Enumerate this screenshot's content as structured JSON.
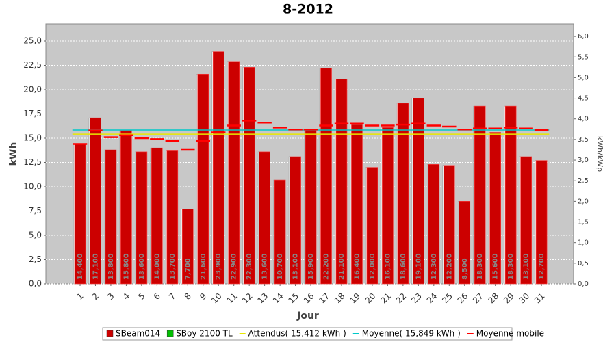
{
  "chart_data": {
    "type": "bar",
    "title": "8-2012",
    "xlabel": "Jour",
    "ylabel": "kWh",
    "y2label": "kWh/kWp",
    "categories": [
      "1",
      "2",
      "3",
      "4",
      "5",
      "6",
      "7",
      "8",
      "9",
      "10",
      "11",
      "12",
      "13",
      "14",
      "15",
      "16",
      "17",
      "18",
      "19",
      "20",
      "21",
      "22",
      "23",
      "24",
      "25",
      "26",
      "27",
      "28",
      "29",
      "30",
      "31"
    ],
    "series": [
      {
        "name": "SBeam014",
        "kind": "bar",
        "color": "#cc0000",
        "values": [
          14.4,
          17.1,
          13.8,
          15.8,
          13.6,
          14.0,
          13.7,
          7.7,
          21.6,
          23.9,
          22.9,
          22.3,
          13.6,
          10.7,
          13.1,
          15.9,
          22.2,
          21.1,
          16.4,
          12.0,
          16.1,
          18.6,
          19.1,
          12.3,
          12.2,
          8.5,
          18.3,
          15.6,
          18.3,
          13.1,
          12.7
        ],
        "value_labels": [
          "14,400",
          "17,100",
          "13,800",
          "15,800",
          "13,600",
          "14,000",
          "13,700",
          "7,700",
          "21,600",
          "23,900",
          "22,900",
          "22,300",
          "13,600",
          "10,700",
          "13,100",
          "15,900",
          "22,200",
          "21,100",
          "16,400",
          "12,000",
          "16,100",
          "18,600",
          "19,100",
          "12,300",
          "12,200",
          "8,500",
          "18,300",
          "15,600",
          "18,300",
          "13,100",
          "12,700"
        ]
      },
      {
        "name": "SBoy 2100 TL",
        "kind": "bar",
        "color": "#00c000"
      },
      {
        "name": "Attendus( 15,412 kWh )",
        "kind": "hline",
        "color": "#e8e800",
        "value": 15.412
      },
      {
        "name": "Moyenne( 15,849 kWh )",
        "kind": "hline",
        "color": "#00c8c8",
        "value": 15.849
      },
      {
        "name": "Moyenne mobile",
        "kind": "dash",
        "color": "#ff0000",
        "values": [
          14.4,
          15.8,
          15.1,
          15.3,
          15.0,
          14.9,
          14.7,
          13.8,
          14.7,
          15.6,
          16.3,
          16.8,
          16.6,
          16.1,
          15.9,
          15.9,
          16.3,
          16.5,
          16.5,
          16.3,
          16.3,
          16.4,
          16.5,
          16.3,
          16.2,
          15.9,
          16.0,
          16.0,
          16.1,
          16.0,
          15.85
        ]
      }
    ],
    "ylim": [
      0,
      26.76
    ],
    "yticks": [
      {
        "value": 0,
        "label": "0,0"
      },
      {
        "value": 2.5,
        "label": "2,5"
      },
      {
        "value": 5,
        "label": "5,0"
      },
      {
        "value": 7.5,
        "label": "7,5"
      },
      {
        "value": 10,
        "label": "10,0"
      },
      {
        "value": 12.5,
        "label": "12,5"
      },
      {
        "value": 15,
        "label": "15,0"
      },
      {
        "value": 17.5,
        "label": "17,5"
      },
      {
        "value": 20,
        "label": "20,0"
      },
      {
        "value": 22.5,
        "label": "22,5"
      },
      {
        "value": 25,
        "label": "25,0"
      }
    ],
    "y2lim": [
      0,
      6.3
    ],
    "y2ticks": [
      {
        "value": 0,
        "label": "0,0"
      },
      {
        "value": 0.5,
        "label": "0,5"
      },
      {
        "value": 1,
        "label": "1,0"
      },
      {
        "value": 1.5,
        "label": "1,5"
      },
      {
        "value": 2,
        "label": "2,0"
      },
      {
        "value": 2.5,
        "label": "2,5"
      },
      {
        "value": 3,
        "label": "3,0"
      },
      {
        "value": 3.5,
        "label": "3,5"
      },
      {
        "value": 4,
        "label": "4,0"
      },
      {
        "value": 4.5,
        "label": "4,5"
      },
      {
        "value": 5,
        "label": "5,0"
      },
      {
        "value": 5.5,
        "label": "5,5"
      },
      {
        "value": 6,
        "label": "6,0"
      }
    ],
    "grid": true
  }
}
